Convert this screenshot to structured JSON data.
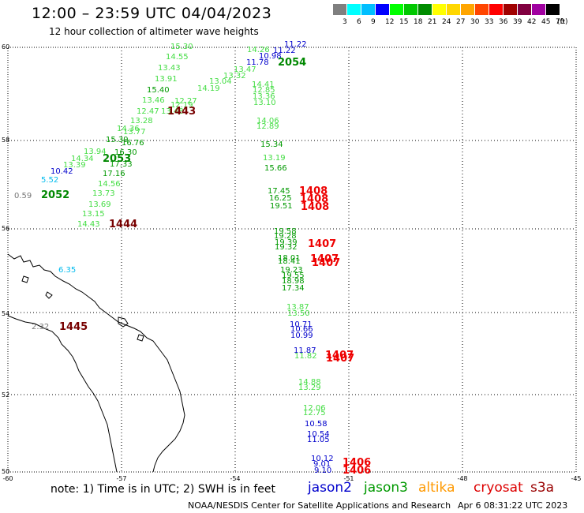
{
  "header": {
    "title": "12:00 – 23:59 UTC 04/04/2023",
    "subtitle": "12 hour collection of altimeter wave heights"
  },
  "legend": {
    "unit": "(ft)",
    "levels": [
      {
        "label": "3",
        "color": "#7f7f7f"
      },
      {
        "label": "6",
        "color": "#00ffff"
      },
      {
        "label": "9",
        "color": "#00bfff"
      },
      {
        "label": "12",
        "color": "#0000ff"
      },
      {
        "label": "15",
        "color": "#00ff00"
      },
      {
        "label": "18",
        "color": "#00c800"
      },
      {
        "label": "21",
        "color": "#008c00"
      },
      {
        "label": "24",
        "color": "#ffff00"
      },
      {
        "label": "27",
        "color": "#ffd700"
      },
      {
        "label": "30",
        "color": "#ffa500"
      },
      {
        "label": "33",
        "color": "#ff4500"
      },
      {
        "label": "36",
        "color": "#ff0000"
      },
      {
        "label": "39",
        "color": "#a00000"
      },
      {
        "label": "42",
        "color": "#800040"
      },
      {
        "label": "45",
        "color": "#a000a0"
      },
      {
        "label": "70",
        "color": "#000000"
      }
    ]
  },
  "map": {
    "lat_ticks": [
      "60",
      "58",
      "56",
      "54",
      "52",
      "50"
    ],
    "lon_ticks": [
      "-60",
      "-57",
      "-54",
      "-51",
      "-48",
      "-45"
    ],
    "wave_heights": [
      {
        "t": "15.30",
        "c": "#44dd44"
      },
      {
        "t": "14.55",
        "c": "#44dd44"
      },
      {
        "t": "13.43",
        "c": "#44dd44"
      },
      {
        "t": "13.91",
        "c": "#44dd44"
      },
      {
        "t": "15.40",
        "c": "#009900"
      },
      {
        "t": "13.46",
        "c": "#44dd44"
      },
      {
        "t": "12.47",
        "c": "#44dd44"
      },
      {
        "t": "13.48",
        "c": "#44dd44"
      },
      {
        "t": "12.27",
        "c": "#44dd44"
      },
      {
        "t": "13.28",
        "c": "#44dd44"
      },
      {
        "t": "14.36",
        "c": "#44dd44"
      },
      {
        "t": "13.77",
        "c": "#44dd44"
      },
      {
        "t": "15.39",
        "c": "#009900"
      },
      {
        "t": "16.76",
        "c": "#009900"
      },
      {
        "t": "13.94",
        "c": "#44dd44"
      },
      {
        "t": "16.30",
        "c": "#009900"
      },
      {
        "t": "14.34",
        "c": "#44dd44"
      },
      {
        "t": "13.39",
        "c": "#44dd44"
      },
      {
        "t": "17.33",
        "c": "#009900"
      },
      {
        "t": "10.42",
        "c": "#0000cc"
      },
      {
        "t": "17.16",
        "c": "#009900"
      },
      {
        "t": "5.52",
        "c": "#00bbee"
      },
      {
        "t": "14.56",
        "c": "#44dd44"
      },
      {
        "t": "0.59",
        "c": "#777777"
      },
      {
        "t": "13.73",
        "c": "#44dd44"
      },
      {
        "t": "13.69",
        "c": "#44dd44"
      },
      {
        "t": "13.15",
        "c": "#44dd44"
      },
      {
        "t": "14.43",
        "c": "#44dd44"
      },
      {
        "t": "12.19",
        "c": "#44dd44"
      },
      {
        "t": "14.19",
        "c": "#44dd44"
      },
      {
        "t": "13.04",
        "c": "#44dd44"
      },
      {
        "t": "13.32",
        "c": "#44dd44"
      },
      {
        "t": "13.47",
        "c": "#44dd44"
      },
      {
        "t": "14.26",
        "c": "#44dd44"
      },
      {
        "t": "11.22",
        "c": "#0000cc"
      },
      {
        "t": "11.22",
        "c": "#0000cc"
      },
      {
        "t": "10.98",
        "c": "#0000cc"
      },
      {
        "t": "11.78",
        "c": "#0000cc"
      },
      {
        "t": "14.41",
        "c": "#44dd44"
      },
      {
        "t": "12.85",
        "c": "#44dd44"
      },
      {
        "t": "13.36",
        "c": "#44dd44"
      },
      {
        "t": "13.10",
        "c": "#44dd44"
      },
      {
        "t": "14.06",
        "c": "#44dd44"
      },
      {
        "t": "12.89",
        "c": "#44dd44"
      },
      {
        "t": "15.34",
        "c": "#009900"
      },
      {
        "t": "13.19",
        "c": "#44dd44"
      },
      {
        "t": "15.66",
        "c": "#009900"
      },
      {
        "t": "17.45",
        "c": "#009900"
      },
      {
        "t": "16.25",
        "c": "#009900"
      },
      {
        "t": "19.51",
        "c": "#009900"
      },
      {
        "t": "19.58",
        "c": "#009900"
      },
      {
        "t": "19.28",
        "c": "#009900"
      },
      {
        "t": "19.39",
        "c": "#009900"
      },
      {
        "t": "19.32",
        "c": "#009900"
      },
      {
        "t": "18.01",
        "c": "#009900"
      },
      {
        "t": "18.41",
        "c": "#009900"
      },
      {
        "t": "19.23",
        "c": "#009900"
      },
      {
        "t": "19.55",
        "c": "#009900"
      },
      {
        "t": "18.98",
        "c": "#009900"
      },
      {
        "t": "17.34",
        "c": "#009900"
      },
      {
        "t": "13.87",
        "c": "#44dd44"
      },
      {
        "t": "13.50",
        "c": "#44dd44"
      },
      {
        "t": "10.71",
        "c": "#0000cc"
      },
      {
        "t": "10.66",
        "c": "#0000cc"
      },
      {
        "t": "10.99",
        "c": "#0000cc"
      },
      {
        "t": "11.87",
        "c": "#0000cc"
      },
      {
        "t": "11.82",
        "c": "#44dd44"
      },
      {
        "t": "14.88",
        "c": "#44dd44"
      },
      {
        "t": "13.29",
        "c": "#44dd44"
      },
      {
        "t": "12.06",
        "c": "#44dd44"
      },
      {
        "t": "12.75",
        "c": "#44dd44"
      },
      {
        "t": "10.58",
        "c": "#0000cc"
      },
      {
        "t": "10.54",
        "c": "#0000cc"
      },
      {
        "t": "11.05",
        "c": "#0000cc"
      },
      {
        "t": "10.12",
        "c": "#0000cc"
      },
      {
        "t": "9.01",
        "c": "#0000cc"
      },
      {
        "t": "9.10",
        "c": "#0000cc"
      },
      {
        "t": "6.35",
        "c": "#00bbee"
      },
      {
        "t": "2.32",
        "c": "#777777"
      }
    ],
    "pass_labels": [
      {
        "t": "2054",
        "c": "#008800"
      },
      {
        "t": "1443",
        "c": "#770000"
      },
      {
        "t": "2053",
        "c": "#008800"
      },
      {
        "t": "2052",
        "c": "#008800"
      },
      {
        "t": "1444",
        "c": "#770000"
      },
      {
        "t": "1408",
        "c": "#ee0000"
      },
      {
        "t": "1408",
        "c": "#ee0000"
      },
      {
        "t": "1408",
        "c": "#ee0000"
      },
      {
        "t": "1407",
        "c": "#ee0000"
      },
      {
        "t": "1407",
        "c": "#ee0000"
      },
      {
        "t": "1407",
        "c": "#ee0000"
      },
      {
        "t": "1407",
        "c": "#ee0000"
      },
      {
        "t": "1407",
        "c": "#ee0000"
      },
      {
        "t": "1445",
        "c": "#770000"
      },
      {
        "t": "1406",
        "c": "#ee0000"
      },
      {
        "t": "1406",
        "c": "#ee0000"
      }
    ]
  },
  "footer": {
    "note": "note: 1) Time is in UTC; 2) SWH is in feet",
    "satellites": [
      {
        "name": "jason2",
        "color": "#0000cc"
      },
      {
        "name": "jason3",
        "color": "#009900"
      },
      {
        "name": "altika",
        "color": "#ff9900"
      },
      {
        "name": "cryosat",
        "color": "#dd0000"
      },
      {
        "name": "s3a",
        "color": "#990000"
      }
    ],
    "credit": "NOAA/NESDIS Center for Satellite Applications and Research",
    "generated": "Apr  6 08:31:22 UTC 2023"
  }
}
